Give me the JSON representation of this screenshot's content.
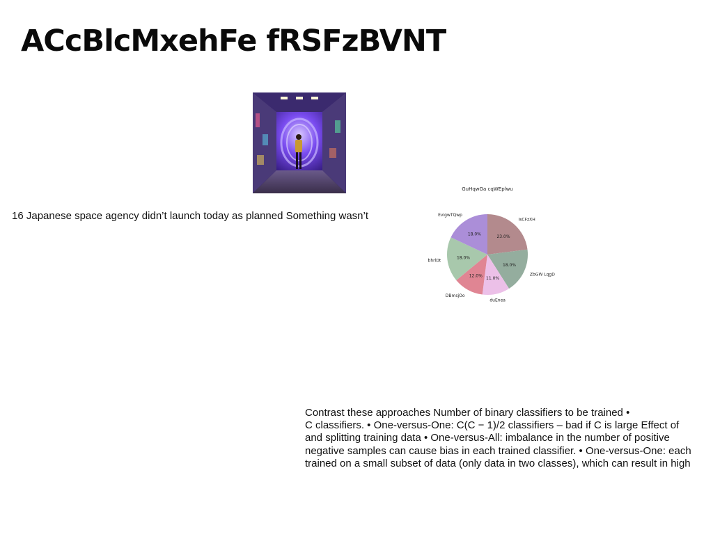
{
  "slide": {
    "title": "ACcBlcMxehFe fRSFzBVNT",
    "caption": "16 Japanese space agency didn’t launch today as planned Something wasn’t",
    "body_lines": [
      "Contrast these approaches Number of binary classifiers to be trained •",
      "C classifiers. • One-versus-One: C(C − 1)/2 classifiers – bad if C is large Effect of",
      "and splitting training data • One-versus-All: imbalance in the number of positive",
      "negative samples can cause bias in each trained classifier. • One-versus-One: each",
      "trained on a small subset of data (only data in two classes), which can result in high"
    ]
  },
  "chart_data": {
    "type": "pie",
    "title": "GuHqwOa cqWEplwu",
    "slices": [
      {
        "label": "IsCFzXH",
        "value": 23.0,
        "pct_label": "23.0%",
        "color": "#b38a8d"
      },
      {
        "label": "ZbGW LqgD",
        "value": 18.0,
        "pct_label": "18.0%",
        "color": "#94ad9e"
      },
      {
        "label": "duEnea",
        "value": 11.0,
        "pct_label": "11.0%",
        "color": "#ecc0e8"
      },
      {
        "label": "DBmsjOo",
        "value": 12.0,
        "pct_label": "12.0%",
        "color": "#e08593"
      },
      {
        "label": "bhrlDt",
        "value": 18.0,
        "pct_label": "18.0%",
        "color": "#a8c8ac"
      },
      {
        "label": "EvigwTQwp",
        "value": 18.0,
        "pct_label": "18.0%",
        "color": "#ab8ed8"
      }
    ]
  }
}
